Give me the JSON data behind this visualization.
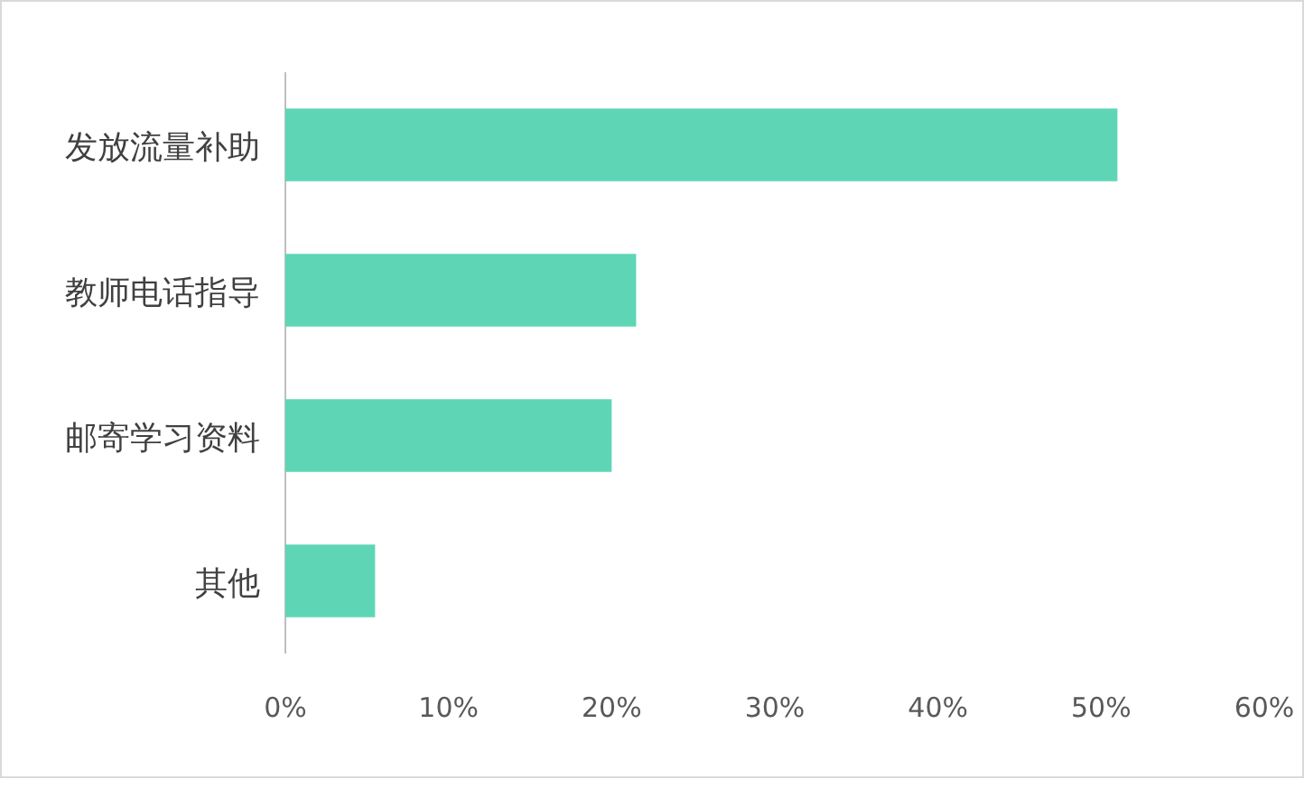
{
  "chart_data": {
    "type": "bar",
    "orientation": "horizontal",
    "categories": [
      "发放流量补助",
      "教师电话指导",
      "邮寄学习资料",
      "其他"
    ],
    "values": [
      51,
      21.5,
      20,
      5.5
    ],
    "color": "#5ed6b6",
    "xlim": [
      0,
      60
    ],
    "xticks": [
      {
        "value": 0,
        "label": "0%"
      },
      {
        "value": 10,
        "label": "10%"
      },
      {
        "value": 20,
        "label": "20%"
      },
      {
        "value": 30,
        "label": "30%"
      },
      {
        "value": 40,
        "label": "40%"
      },
      {
        "value": 50,
        "label": "50%"
      },
      {
        "value": 60,
        "label": "60%"
      }
    ],
    "grid": false
  }
}
